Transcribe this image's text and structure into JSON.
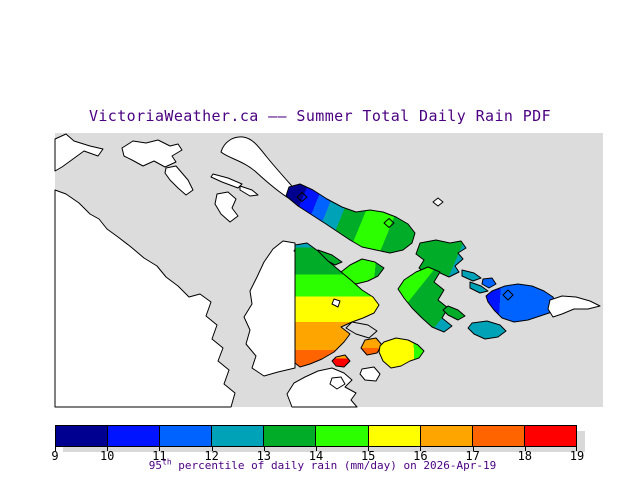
{
  "title": "VictoriaWeather.ca —— Summer Total Daily Rain PDF",
  "colors": {
    "text_purple": "#4b0082",
    "tick_text": "#000000",
    "sea": "#dcdcdc",
    "land": "#ffffff",
    "shadow": "#d9d9d9",
    "outline": "#000000"
  },
  "colorbar": {
    "ticks": [
      "9",
      "10",
      "11",
      "12",
      "13",
      "14",
      "15",
      "16",
      "17",
      "18",
      "19"
    ],
    "colors": [
      "#000090",
      "#0014ff",
      "#0063ff",
      "#00a2b8",
      "#00ac28",
      "#2cff00",
      "#ffff00",
      "#ffa500",
      "#ff6400",
      "#ff0000"
    ]
  },
  "caption": {
    "base": "95",
    "sup": "th",
    "rest": " percentile of daily rain (mm/day) on 2026-Apr-19"
  },
  "chart_data": {
    "type": "heatmap",
    "title": "VictoriaWeather.ca —— Summer Total Daily Rain PDF",
    "colorbar_label": "95th percentile of daily rain (mm/day) on 2026-Apr-19",
    "scale_ticks": [
      9,
      10,
      11,
      12,
      13,
      14,
      15,
      16,
      17,
      18,
      19
    ],
    "scale_unit": "mm/day",
    "scale_colors": [
      "#000090",
      "#0014ff",
      "#0063ff",
      "#00a2b8",
      "#00ac28",
      "#2cff00",
      "#ffff00",
      "#ffa500",
      "#ff6400",
      "#ff0000"
    ],
    "legend_position": "bottom",
    "regions": [
      {
        "name": "long-nw-island-colored-end",
        "value_range_mm_day": [
          9,
          14
        ]
      },
      {
        "name": "central-green-island-cluster",
        "value_range_mm_day": [
          12,
          15
        ]
      },
      {
        "name": "east-elongated-green-island",
        "value_range_mm_day": [
          12,
          14
        ]
      },
      {
        "name": "bright-green-islet-center",
        "value_range_mm_day": [
          14,
          15
        ]
      },
      {
        "name": "large-central-island-east-half",
        "value_range_mm_day": [
          12,
          18
        ]
      },
      {
        "name": "yellow-island-south",
        "value_range_mm_day": [
          14,
          16
        ]
      },
      {
        "name": "orange-islet-south",
        "value_range_mm_day": [
          16,
          18
        ]
      },
      {
        "name": "red-islet-south",
        "value_range_mm_day": [
          17,
          19
        ]
      },
      {
        "name": "blue-island-east",
        "value_range_mm_day": [
          10,
          12
        ]
      },
      {
        "name": "teal-islets-southeast",
        "value_range_mm_day": [
          12,
          13
        ]
      }
    ]
  }
}
